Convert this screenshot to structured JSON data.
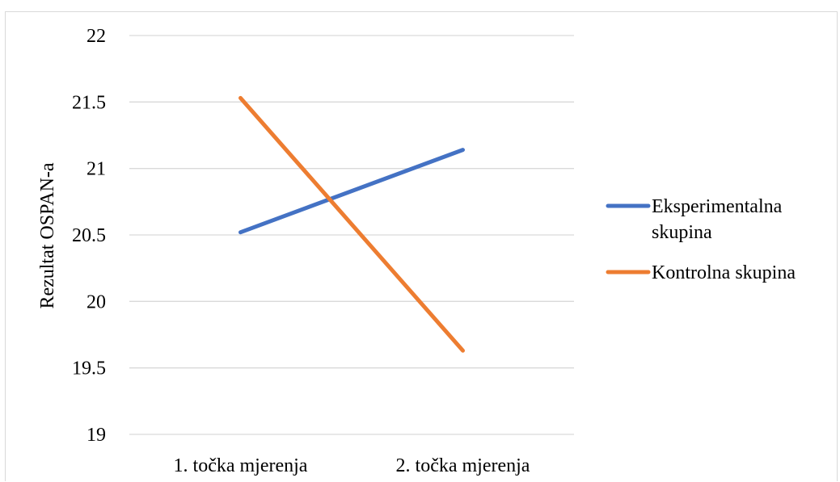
{
  "chart_data": {
    "type": "line",
    "title": "",
    "xlabel": "",
    "ylabel": "Rezultat OSPAN-a",
    "categories": [
      "1. točka mjerenja",
      "2. točka mjerenja"
    ],
    "ylim": [
      19,
      22
    ],
    "yticks": [
      19,
      19.5,
      20,
      20.5,
      21,
      21.5,
      22
    ],
    "grid": true,
    "legend_position": "right",
    "series": [
      {
        "name": "Eksperimentalna skupina",
        "name_lines": [
          "Eksperimentalna",
          "skupina"
        ],
        "color": "#4472c4",
        "values": [
          20.52,
          21.14
        ]
      },
      {
        "name": "Kontrolna skupina",
        "name_lines": [
          "Kontrolna skupina"
        ],
        "color": "#ed7d31",
        "values": [
          21.53,
          19.63
        ]
      }
    ]
  }
}
